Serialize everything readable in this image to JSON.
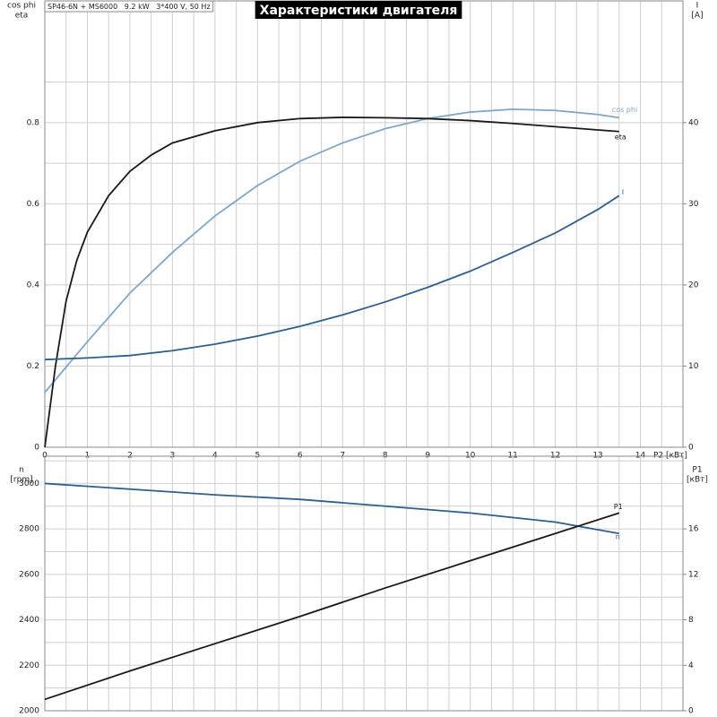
{
  "chart_data": [
    {
      "type": "line",
      "title": "Характеристики двигателя",
      "subtitle": "SP46-6N + MS6000   9.2 kW   3*400 V, 50 Hz",
      "xlabel": "P2 [кВт]",
      "ylabel": [
        "cos phi",
        "eta"
      ],
      "y2label": [
        "I",
        "[A]"
      ],
      "xlim": [
        0,
        15
      ],
      "xticks": [
        0,
        1,
        2,
        3,
        4,
        5,
        6,
        7,
        8,
        9,
        10,
        11,
        12,
        13,
        14
      ],
      "show_xtick_labels": true,
      "ylim": [
        0,
        1.1
      ],
      "yticks": [
        0,
        {
          "value": 0.2,
          "label": "0.2"
        },
        {
          "value": 0.4,
          "label": "0.4"
        },
        {
          "value": 0.6,
          "label": "0.6"
        },
        {
          "value": 0.8,
          "label": "0.8"
        }
      ],
      "y2lim": [
        0,
        55
      ],
      "y2ticks": [
        0,
        10,
        20,
        30,
        40
      ],
      "grid": true,
      "series": [
        {
          "name": "cos phi",
          "color": "#7fa7c9",
          "x": [
            0,
            1,
            2,
            3,
            4,
            5,
            6,
            7,
            8,
            9,
            10,
            11,
            12,
            13,
            13.5
          ],
          "values": [
            0.135,
            0.26,
            0.38,
            0.48,
            0.57,
            0.645,
            0.705,
            0.75,
            0.785,
            0.81,
            0.826,
            0.833,
            0.83,
            0.82,
            0.812
          ]
        },
        {
          "name": "eta",
          "color": "#1a1a1a",
          "x": [
            0,
            0.25,
            0.5,
            0.75,
            1,
            1.5,
            2,
            2.5,
            3,
            4,
            5,
            6,
            7,
            8,
            9,
            10,
            11,
            12,
            13,
            13.5
          ],
          "values": [
            0,
            0.2,
            0.36,
            0.46,
            0.53,
            0.62,
            0.68,
            0.72,
            0.75,
            0.78,
            0.8,
            0.81,
            0.813,
            0.812,
            0.81,
            0.805,
            0.798,
            0.79,
            0.782,
            0.778
          ]
        },
        {
          "name": "I",
          "color": "#2e5f8f",
          "axis": "y2",
          "x": [
            0,
            1,
            2,
            3,
            4,
            5,
            6,
            7,
            8,
            9,
            10,
            11,
            12,
            13,
            13.5
          ],
          "values": [
            10.8,
            11,
            11.3,
            11.9,
            12.7,
            13.7,
            14.9,
            16.3,
            17.9,
            19.7,
            21.7,
            24,
            26.4,
            29.3,
            31
          ]
        }
      ]
    },
    {
      "type": "line",
      "ylabel": [
        "n",
        "[rpm]"
      ],
      "y2label": [
        "P1",
        "[кВт]"
      ],
      "xlim": [
        0,
        15
      ],
      "xticks": [
        0,
        1,
        2,
        3,
        4,
        5,
        6,
        7,
        8,
        9,
        10,
        11,
        12,
        13,
        14
      ],
      "show_xtick_labels": false,
      "ylim": [
        2000,
        3120
      ],
      "yticks": [
        2000,
        2200,
        2400,
        2600,
        2800,
        3000
      ],
      "y2lim": [
        0,
        22.4
      ],
      "y2ticks": [
        0,
        4,
        8,
        12,
        16
      ],
      "grid": true,
      "series": [
        {
          "name": "n",
          "color": "#2e5f8f",
          "x": [
            0,
            2,
            4,
            6,
            8,
            10,
            12,
            13.5
          ],
          "values": [
            3000,
            2975,
            2950,
            2930,
            2900,
            2870,
            2830,
            2780
          ]
        },
        {
          "name": "P1",
          "color": "#1a1a1a",
          "axis": "y2",
          "x": [
            0,
            2,
            4,
            6,
            8,
            10,
            12,
            13.5
          ],
          "values": [
            1.0,
            3.5,
            5.9,
            8.3,
            10.8,
            13.2,
            15.6,
            17.4
          ]
        }
      ]
    }
  ]
}
